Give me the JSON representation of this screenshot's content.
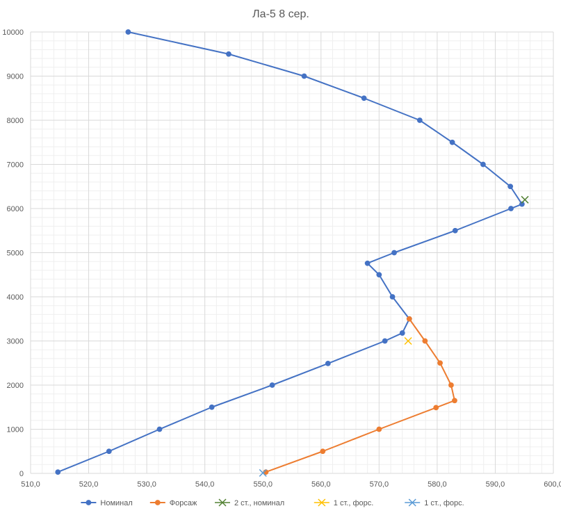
{
  "chart_data": {
    "type": "line",
    "title": "Ла-5 8 сер.",
    "xlabel": "",
    "ylabel": "",
    "xlim": [
      510,
      600
    ],
    "ylim": [
      0,
      10000
    ],
    "x_ticks": [
      "510,0",
      "520,0",
      "530,0",
      "540,0",
      "550,0",
      "560,0",
      "570,0",
      "580,0",
      "590,0",
      "600,0"
    ],
    "y_ticks": [
      "0",
      "1000",
      "2000",
      "3000",
      "4000",
      "5000",
      "6000",
      "7000",
      "8000",
      "9000",
      "10000"
    ],
    "grid": true,
    "legend_position": "bottom",
    "series": [
      {
        "name": "Номинал",
        "color": "#4472C4",
        "marker": "circle",
        "line": true,
        "points": [
          [
            514.7,
            30
          ],
          [
            523.5,
            500
          ],
          [
            532.2,
            1000
          ],
          [
            541.2,
            1500
          ],
          [
            551.6,
            2000
          ],
          [
            561.2,
            2490
          ],
          [
            571.0,
            3000
          ],
          [
            574.0,
            3180
          ],
          [
            575.2,
            3500
          ],
          [
            572.3,
            4000
          ],
          [
            570.0,
            4500
          ],
          [
            568.0,
            4760
          ],
          [
            572.6,
            5000
          ],
          [
            583.1,
            5500
          ],
          [
            592.7,
            6000
          ],
          [
            594.6,
            6100
          ],
          [
            592.6,
            6500
          ],
          [
            587.9,
            7000
          ],
          [
            582.6,
            7500
          ],
          [
            577.0,
            8000
          ],
          [
            567.4,
            8500
          ],
          [
            557.1,
            9000
          ],
          [
            544.1,
            9500
          ],
          [
            526.8,
            10000
          ]
        ]
      },
      {
        "name": "Форсаж",
        "color": "#ED7D31",
        "marker": "circle",
        "line": true,
        "points": [
          [
            550.5,
            30
          ],
          [
            560.3,
            500
          ],
          [
            570.0,
            1000
          ],
          [
            579.8,
            1490
          ],
          [
            583.0,
            1650
          ],
          [
            582.4,
            2000
          ],
          [
            580.5,
            2500
          ],
          [
            577.9,
            3000
          ],
          [
            575.2,
            3500
          ]
        ]
      },
      {
        "name": "2 ст., номинал",
        "color": "#548235",
        "marker": "x",
        "line": false,
        "points": [
          [
            595.1,
            6200
          ]
        ]
      },
      {
        "name": "1 ст., форс.",
        "color": "#FFC000",
        "marker": "x",
        "line": false,
        "points": [
          [
            575.0,
            3000
          ]
        ]
      },
      {
        "name": "1 ст., форс.",
        "color": "#5B9BD5",
        "marker": "x",
        "line": false,
        "points": [
          [
            550.0,
            10
          ]
        ]
      }
    ]
  }
}
